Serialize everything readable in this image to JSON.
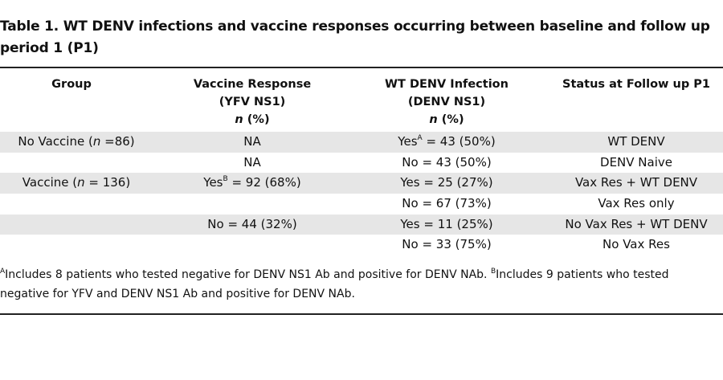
{
  "title": "Table 1. WT DENV infections and vaccine responses occurring between baseline and follow up period 1 (P1)",
  "headers": {
    "group": "Group",
    "vaccine_line1": "Vaccine Response",
    "vaccine_line2": "(YFV NS1)",
    "vaccine_n": "n",
    "vaccine_pct": " (%)",
    "infection_line1": "WT DENV Infection",
    "infection_line2": "(DENV NS1)",
    "infection_n": "n",
    "infection_pct": " (%)",
    "status": "Status at Follow up P1"
  },
  "rows": [
    {
      "group_pre": "No Vaccine (",
      "group_n": "n",
      "group_post": " =86)",
      "vaccine": "NA",
      "vaccine_sup": "",
      "vaccine_rest": "",
      "infection": "Yes",
      "infection_sup": "A",
      "infection_rest": " = 43 (50%)",
      "status": "WT DENV"
    },
    {
      "group_pre": "",
      "group_n": "",
      "group_post": "",
      "vaccine": "NA",
      "vaccine_sup": "",
      "vaccine_rest": "",
      "infection": "No = 43 (50%)",
      "infection_sup": "",
      "infection_rest": "",
      "status": "DENV Naive"
    },
    {
      "group_pre": "Vaccine (",
      "group_n": "n",
      "group_post": " = 136)",
      "vaccine": "Yes",
      "vaccine_sup": "B",
      "vaccine_rest": " = 92 (68%)",
      "infection": "Yes = 25 (27%)",
      "infection_sup": "",
      "infection_rest": "",
      "status": "Vax Res + WT DENV"
    },
    {
      "group_pre": "",
      "group_n": "",
      "group_post": "",
      "vaccine": "",
      "vaccine_sup": "",
      "vaccine_rest": "",
      "infection": "No = 67 (73%)",
      "infection_sup": "",
      "infection_rest": "",
      "status": "Vax Res only"
    },
    {
      "group_pre": "",
      "group_n": "",
      "group_post": "",
      "vaccine": "No = 44 (32%)",
      "vaccine_sup": "",
      "vaccine_rest": "",
      "infection": "Yes = 11 (25%)",
      "infection_sup": "",
      "infection_rest": "",
      "status": "No Vax Res + WT DENV"
    },
    {
      "group_pre": "",
      "group_n": "",
      "group_post": "",
      "vaccine": "",
      "vaccine_sup": "",
      "vaccine_rest": "",
      "infection": "No = 33 (75%)",
      "infection_sup": "",
      "infection_rest": "",
      "status": "No Vax Res"
    }
  ],
  "footnote": {
    "a_mark": "A",
    "a_text": "Includes 8 patients who tested negative for DENV NS1 Ab and positive for DENV NAb. ",
    "b_mark": "B",
    "b_text": "Includes 9 patients who tested negative for YFV and DENV NS1 Ab and positive for DENV NAb."
  }
}
